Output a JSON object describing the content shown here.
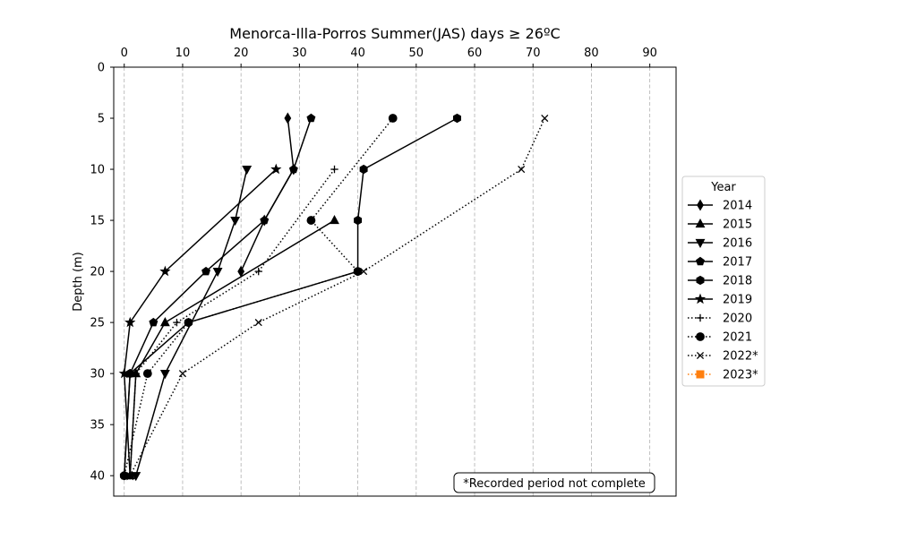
{
  "chart_data": {
    "type": "line",
    "title": "Menorca-Illa-Porros Summer(JAS) days ≥ 26ºC",
    "xlabel": "",
    "ylabel": "Depth (m)",
    "xlim": [
      -1.8,
      94.5
    ],
    "ylim": [
      42,
      0
    ],
    "x_axis_position": "top",
    "y_inverted": true,
    "x_ticks": [
      0,
      10,
      20,
      30,
      40,
      50,
      60,
      70,
      80,
      90
    ],
    "y_ticks": [
      0,
      5,
      10,
      15,
      20,
      25,
      30,
      35,
      40
    ],
    "grid": "x-dashed",
    "legend": {
      "title": "Year",
      "placement": "outside-right"
    },
    "annotation": "*Recorded period not complete",
    "series": [
      {
        "name": "2014",
        "color": "#000000",
        "linestyle": "solid",
        "marker": "thin_diamond",
        "points": [
          [
            28,
            5
          ],
          [
            29,
            10
          ],
          [
            24,
            15
          ],
          [
            20,
            20
          ]
        ]
      },
      {
        "name": "2015",
        "color": "#000000",
        "linestyle": "solid",
        "marker": "triangle_up",
        "points": [
          [
            36,
            15
          ],
          [
            7,
            25
          ],
          [
            2,
            30
          ],
          [
            1,
            40
          ]
        ]
      },
      {
        "name": "2016",
        "color": "#000000",
        "linestyle": "solid",
        "marker": "triangle_down",
        "points": [
          [
            21,
            10
          ],
          [
            19,
            15
          ],
          [
            16,
            20
          ],
          [
            7,
            30
          ],
          [
            2,
            40
          ]
        ]
      },
      {
        "name": "2017",
        "color": "#000000",
        "linestyle": "solid",
        "marker": "pentagon",
        "points": [
          [
            32,
            5
          ],
          [
            29,
            10
          ],
          [
            24,
            15
          ],
          [
            14,
            20
          ],
          [
            5,
            25
          ],
          [
            1,
            30
          ],
          [
            0,
            40
          ]
        ]
      },
      {
        "name": "2018",
        "color": "#000000",
        "linestyle": "solid",
        "marker": "hexagon",
        "points": [
          [
            57,
            5
          ],
          [
            41,
            10
          ],
          [
            40,
            15
          ],
          [
            40,
            20
          ],
          [
            11,
            25
          ],
          [
            1,
            30
          ],
          [
            0,
            40
          ]
        ]
      },
      {
        "name": "2019",
        "color": "#000000",
        "linestyle": "solid",
        "marker": "star",
        "points": [
          [
            26,
            10
          ],
          [
            7,
            20
          ],
          [
            1,
            25
          ],
          [
            0,
            30
          ],
          [
            1,
            40
          ]
        ]
      },
      {
        "name": "2020",
        "color": "#000000",
        "linestyle": "dotted",
        "marker": "plus",
        "points": [
          [
            36,
            10
          ],
          [
            23,
            20
          ],
          [
            9,
            25
          ],
          [
            2,
            30
          ],
          [
            1,
            40
          ]
        ]
      },
      {
        "name": "2021",
        "color": "#000000",
        "linestyle": "dotted",
        "marker": "circle",
        "points": [
          [
            46,
            5
          ],
          [
            32,
            15
          ],
          [
            40,
            20
          ],
          [
            11,
            25
          ],
          [
            4,
            30
          ],
          [
            0,
            40
          ]
        ]
      },
      {
        "name": "2022*",
        "color": "#000000",
        "linestyle": "dotted",
        "marker": "x",
        "points": [
          [
            72,
            5
          ],
          [
            68,
            10
          ],
          [
            41,
            20
          ],
          [
            23,
            25
          ],
          [
            10,
            30
          ],
          [
            1,
            40
          ]
        ]
      },
      {
        "name": "2023*",
        "color": "#ff7f0e",
        "linestyle": "dotted",
        "marker": "square",
        "points": []
      }
    ]
  }
}
